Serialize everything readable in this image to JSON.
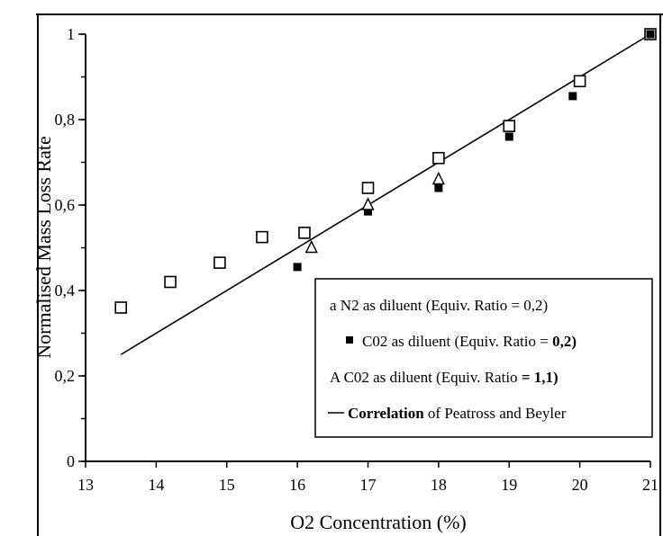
{
  "chart_data": {
    "type": "scatter",
    "title": "",
    "xlabel": "O2 Concentration (%)",
    "ylabel": "Normalised Mass Loss Rate",
    "xlim": [
      13,
      21
    ],
    "ylim": [
      0,
      1
    ],
    "x_ticks": [
      13,
      14,
      15,
      16,
      17,
      18,
      19,
      20,
      21
    ],
    "x_tick_labels": [
      "13",
      "14",
      "15",
      "16",
      "17",
      "18",
      "19",
      "20",
      "21"
    ],
    "y_ticks": [
      0,
      0.2,
      0.4,
      0.6,
      0.8,
      1
    ],
    "y_tick_labels": [
      "0",
      "0,2",
      "0,4",
      "0,6",
      "0,8",
      "1"
    ],
    "grid": false,
    "legend_position": "bottom-right",
    "series": [
      {
        "name": "N2 as diluent (Equiv. Ratio = 0,2)",
        "marker": "open-square",
        "color": "#000000",
        "points": [
          [
            13.5,
            0.36
          ],
          [
            14.2,
            0.42
          ],
          [
            14.9,
            0.465
          ],
          [
            15.5,
            0.525
          ],
          [
            16.1,
            0.535
          ],
          [
            17.0,
            0.64
          ],
          [
            18.0,
            0.71
          ],
          [
            19.0,
            0.785
          ],
          [
            20.0,
            0.89
          ],
          [
            21.0,
            1.0
          ]
        ]
      },
      {
        "name": "CO2 as diluent (Equiv. Ratio = 0,2)",
        "marker": "filled-square",
        "color": "#000000",
        "points": [
          [
            16.0,
            0.455
          ],
          [
            17.0,
            0.585
          ],
          [
            18.0,
            0.64
          ],
          [
            19.0,
            0.76
          ],
          [
            19.9,
            0.855
          ],
          [
            21.0,
            1.0
          ]
        ]
      },
      {
        "name": "CO2 as diluent (Equiv. Ratio = 1,1)",
        "marker": "open-triangle",
        "color": "#000000",
        "points": [
          [
            16.2,
            0.5
          ],
          [
            17.0,
            0.6
          ],
          [
            18.0,
            0.66
          ]
        ]
      },
      {
        "name": "Correlation of Peatross and Beyler",
        "marker": "line",
        "color": "#000000",
        "points": [
          [
            13.5,
            0.25
          ],
          [
            21.0,
            1.0
          ]
        ]
      }
    ],
    "legend": [
      {
        "prefix": "a ",
        "text": "N2 as diluent (Equiv. Ratio = 0,2)"
      },
      {
        "prefix": "",
        "text": "C02 as diluent (Equiv. Ratio = ",
        "strong_suffix": "0,2)"
      },
      {
        "prefix": "A ",
        "text": "C02 as diluent (Equiv. Ratio ",
        "strong_suffix": "= 1,1)"
      },
      {
        "prefix": "",
        "strong_text": "Correlation",
        "text": " of Peatross and Beyler"
      }
    ]
  }
}
